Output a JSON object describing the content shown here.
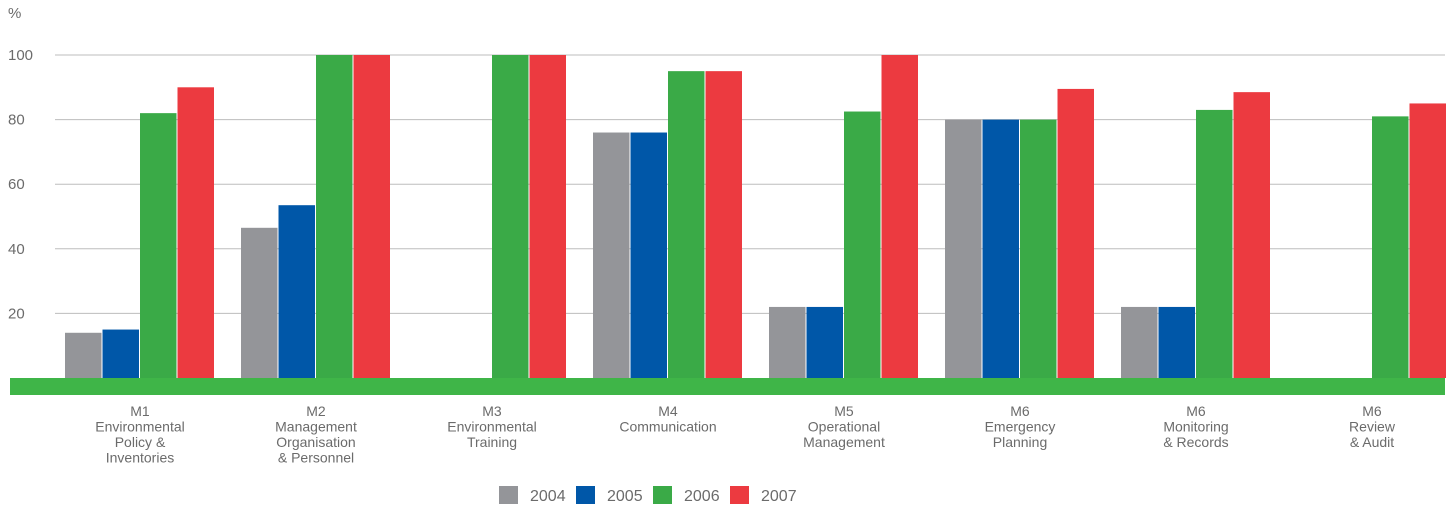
{
  "chart_data": {
    "type": "bar",
    "ylabel": "%",
    "ylim": [
      0,
      100
    ],
    "yticks": [
      20,
      40,
      60,
      80,
      100
    ],
    "grid": true,
    "legend_position": "bottom-center",
    "categories": [
      [
        "M1",
        "Environmental",
        "Policy &",
        "Inventories"
      ],
      [
        "M2",
        "Management",
        "Organisation",
        "& Personnel"
      ],
      [
        "M3",
        "Environmental",
        "Training"
      ],
      [
        "M4",
        "Communication"
      ],
      [
        "M5",
        "Operational",
        "Management"
      ],
      [
        "M6",
        "Emergency",
        "Planning"
      ],
      [
        "M6",
        "Monitoring",
        "& Records"
      ],
      [
        "M6",
        "Review",
        "& Audit"
      ]
    ],
    "series": [
      {
        "name": "2004",
        "color": "#949599",
        "values": [
          14,
          46.5,
          0,
          76,
          22,
          80,
          22,
          0
        ]
      },
      {
        "name": "2005",
        "color": "#0057a8",
        "values": [
          15,
          53.5,
          0,
          76,
          22,
          80,
          22,
          0
        ]
      },
      {
        "name": "2006",
        "color": "#3aaa47",
        "values": [
          82,
          100,
          100,
          95,
          82.5,
          80,
          83,
          81
        ]
      },
      {
        "name": "2007",
        "color": "#ec3a40",
        "values": [
          90,
          100,
          100,
          95,
          100,
          89.5,
          88.5,
          85
        ]
      }
    ],
    "baseline_color": "#3fb548",
    "grid_color": "#bdbdbd"
  }
}
